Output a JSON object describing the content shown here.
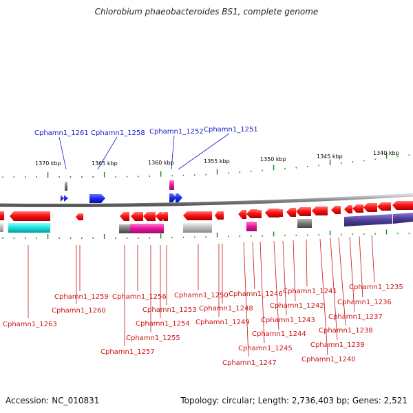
{
  "title": "Chlorobium phaeobacteroides BS1, complete genome",
  "footer": {
    "accession": "Accession: NC_010831",
    "summary": "Topology: circular; Length: 2,736,403 bp; Genes: 2,521"
  },
  "kbp_ticks": [
    "1370 kbp",
    "1365 kbp",
    "1360 kbp",
    "1355 kbp",
    "1350 kbp",
    "1345 kbp",
    "1340 kbp"
  ],
  "top_labels": [
    "Cphamn1_1261",
    "Cphamn1_1258",
    "Cphamn1_1252",
    "Cphamn1_1251"
  ],
  "bottom_labels": [
    "Cphamn1_1263",
    "Cphamn1_1260",
    "Cphamn1_1259",
    "Cphamn1_1257",
    "Cphamn1_1256",
    "Cphamn1_1255",
    "Cphamn1_1254",
    "Cphamn1_1253",
    "Cphamn1_1250",
    "Cphamn1_1249",
    "Cphamn1_1248",
    "Cphamn1_1247",
    "Cphamn1_1246",
    "Cphamn1_1245",
    "Cphamn1_1244",
    "Cphamn1_1243",
    "Cphamn1_1242",
    "Cphamn1_1241",
    "Cphamn1_1240",
    "Cphamn1_1239",
    "Cphamn1_1238",
    "Cphamn1_1237",
    "Cphamn1_1236",
    "Cphamn1_1235"
  ],
  "colors": {
    "gene_red": "#ee1111",
    "gene_blue": "#1a2ae8",
    "gene_magenta": "#e8159a",
    "gene_cyan": "#19e0e0",
    "gene_purple": "#4f3f9a",
    "gene_gray": "#777777",
    "tick_green": "#1f8f1f",
    "backbone": "#888888",
    "label_blue": "#1a1acc",
    "label_red": "#cc1111"
  }
}
